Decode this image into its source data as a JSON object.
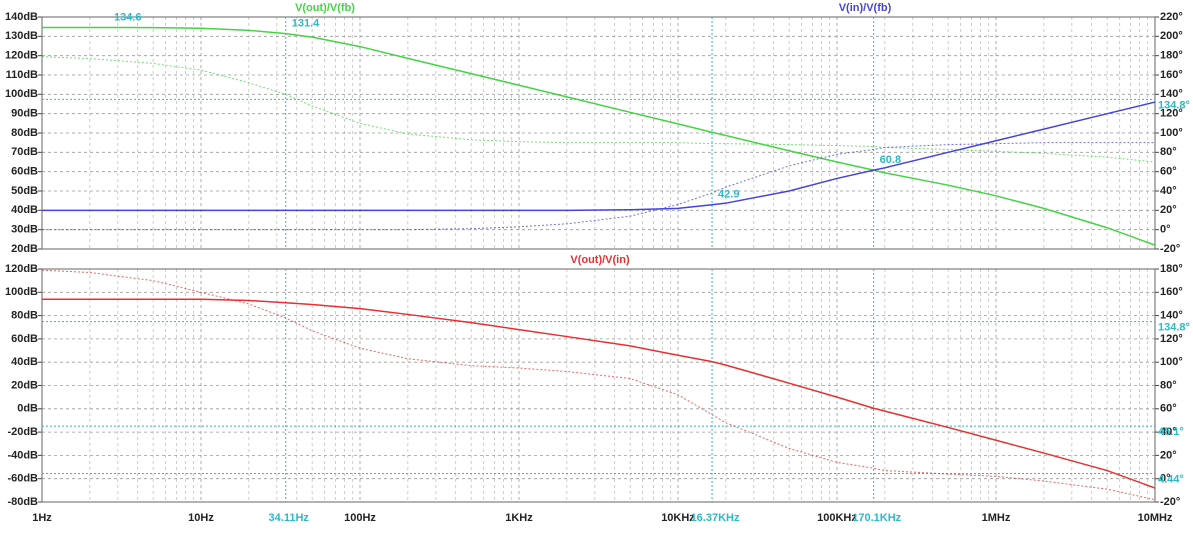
{
  "chart_data": [
    {
      "type": "line",
      "xscale": "log",
      "xlim": [
        1,
        10000000
      ],
      "ylim": [
        20,
        140
      ],
      "y2lim": [
        -20,
        220
      ],
      "yticks": [
        {
          "value": 140,
          "label": "140dB"
        },
        {
          "value": 130,
          "label": "130dB"
        },
        {
          "value": 120,
          "label": "120dB"
        },
        {
          "value": 110,
          "label": "110dB"
        },
        {
          "value": 100,
          "label": "100dB"
        },
        {
          "value": 90,
          "label": "90dB"
        },
        {
          "value": 80,
          "label": "80dB"
        },
        {
          "value": 70,
          "label": "70dB"
        },
        {
          "value": 60,
          "label": "60dB"
        },
        {
          "value": 50,
          "label": "50dB"
        },
        {
          "value": 40,
          "label": "40dB"
        },
        {
          "value": 30,
          "label": "30dB"
        },
        {
          "value": 20,
          "label": "20dB"
        }
      ],
      "y2ticks": [
        {
          "value": 220,
          "label": "220°"
        },
        {
          "value": 200,
          "label": "200°"
        },
        {
          "value": 180,
          "label": "180°"
        },
        {
          "value": 160,
          "label": "160°"
        },
        {
          "value": 140,
          "label": "140°"
        },
        {
          "value": 120,
          "label": "120°"
        },
        {
          "value": 100,
          "label": "100°"
        },
        {
          "value": 80,
          "label": "80°"
        },
        {
          "value": 60,
          "label": "60°"
        },
        {
          "value": 40,
          "label": "40°"
        },
        {
          "value": 20,
          "label": "20°"
        },
        {
          "value": 0,
          "label": "0°"
        },
        {
          "value": -20,
          "label": "-20°"
        }
      ],
      "grid": true,
      "x": [
        1,
        2,
        5,
        10,
        20,
        34.11,
        50,
        100,
        200,
        500,
        1000,
        2000,
        5000,
        10000,
        16370,
        20000,
        50000,
        100000,
        170100,
        200000,
        500000,
        1000000,
        2000000,
        5000000,
        10000000
      ],
      "series": [
        {
          "name": "V(out)/V(fb)",
          "color": "#44d444",
          "values": [
            134.6,
            134.6,
            134.5,
            134.2,
            133.1,
            131.4,
            129.6,
            124.7,
            118.6,
            110.7,
            104.7,
            98.7,
            90.7,
            84.7,
            80.4,
            78.7,
            70.8,
            65,
            60.8,
            59.4,
            53,
            47.5,
            41,
            31,
            22
          ],
          "phase": [
            179,
            177,
            172,
            165,
            152,
            140,
            128,
            110,
            99,
            93,
            91,
            90,
            90,
            90,
            89,
            89,
            88,
            87,
            86,
            85,
            83,
            81,
            79,
            75,
            70
          ]
        },
        {
          "name": "V(in)/V(fb)",
          "color": "#4444dd",
          "values": [
            40,
            40,
            40,
            40,
            40,
            40,
            40,
            40,
            40,
            40,
            40,
            40,
            40.3,
            41,
            42.9,
            43.7,
            50,
            56.5,
            60.8,
            62,
            70,
            76,
            82,
            90,
            96
          ],
          "phase": [
            0,
            0,
            0,
            0,
            0,
            0,
            0,
            0,
            0,
            1,
            3,
            6,
            14,
            26,
            38,
            44,
            66,
            78,
            83,
            85,
            88,
            89,
            90,
            90,
            90
          ]
        }
      ],
      "annotations": [
        {
          "x": 2.6,
          "value": 134.6
        },
        {
          "x": 34.11,
          "value": 131.4
        },
        {
          "x": 16370,
          "value": 42.9
        },
        {
          "x": 170100,
          "value": 60.8
        }
      ],
      "y2_markers": [
        {
          "value": 134.8,
          "label": "134.8°"
        }
      ]
    },
    {
      "type": "line",
      "xscale": "log",
      "xlim": [
        1,
        10000000
      ],
      "ylim": [
        -80,
        120
      ],
      "y2lim": [
        -20,
        180
      ],
      "yticks": [
        {
          "value": 120,
          "label": "120dB"
        },
        {
          "value": 100,
          "label": "100dB"
        },
        {
          "value": 80,
          "label": "80dB"
        },
        {
          "value": 60,
          "label": "60dB"
        },
        {
          "value": 40,
          "label": "40dB"
        },
        {
          "value": 20,
          "label": "20dB"
        },
        {
          "value": 0,
          "label": "0dB"
        },
        {
          "value": -20,
          "label": "-20dB"
        },
        {
          "value": -40,
          "label": "-40dB"
        },
        {
          "value": -60,
          "label": "-60dB"
        },
        {
          "value": -80,
          "label": "-80dB"
        }
      ],
      "y2ticks": [
        {
          "value": 180,
          "label": "180°"
        },
        {
          "value": 160,
          "label": "160°"
        },
        {
          "value": 140,
          "label": "140°"
        },
        {
          "value": 120,
          "label": "120°"
        },
        {
          "value": 100,
          "label": "100°"
        },
        {
          "value": 80,
          "label": "80°"
        },
        {
          "value": 60,
          "label": "60°"
        },
        {
          "value": 40,
          "label": "40°"
        },
        {
          "value": 20,
          "label": "20°"
        },
        {
          "value": 0,
          "label": "0°"
        },
        {
          "value": -20,
          "label": "-20°"
        }
      ],
      "xticks": [
        {
          "value": 1,
          "label": "1Hz"
        },
        {
          "value": 10,
          "label": "10Hz"
        },
        {
          "value": 100,
          "label": "100Hz"
        },
        {
          "value": 1000,
          "label": "1KHz"
        },
        {
          "value": 10000,
          "label": "10KHz"
        },
        {
          "value": 100000,
          "label": "100KHz"
        },
        {
          "value": 1000000,
          "label": "1MHz"
        },
        {
          "value": 10000000,
          "label": "10MHz"
        }
      ],
      "grid": true,
      "x": [
        1,
        2,
        5,
        10,
        20,
        34.11,
        50,
        100,
        200,
        500,
        1000,
        2000,
        5000,
        10000,
        16370,
        20000,
        50000,
        100000,
        170100,
        200000,
        500000,
        1000000,
        2000000,
        5000000,
        10000000
      ],
      "series": [
        {
          "name": "V(out)/V(in)",
          "color": "#e83030",
          "values": [
            94,
            94,
            94,
            94,
            93,
            91,
            89.5,
            86,
            81,
            74,
            68,
            62,
            54,
            46,
            40.5,
            37.5,
            22,
            10,
            0.5,
            -2,
            -16,
            -27,
            -38,
            -53,
            -68
          ],
          "phase": [
            179,
            177,
            170,
            160,
            150,
            138,
            127,
            112,
            103,
            97,
            95,
            92,
            86,
            72,
            55,
            48,
            26,
            14,
            9,
            7,
            4,
            2,
            -2,
            -9,
            -18
          ]
        }
      ],
      "cursors": [
        {
          "value": 34.11,
          "label": "34.11Hz"
        },
        {
          "value": 16370,
          "label": "16.37KHz"
        },
        {
          "value": 170100,
          "label": "170.1KHz"
        }
      ],
      "y2_markers": [
        {
          "value": 134.8,
          "label": "134.8°"
        },
        {
          "value": 45.1,
          "label": "45.1°"
        },
        {
          "value": 4.44,
          "label": "4.44°"
        }
      ]
    }
  ]
}
